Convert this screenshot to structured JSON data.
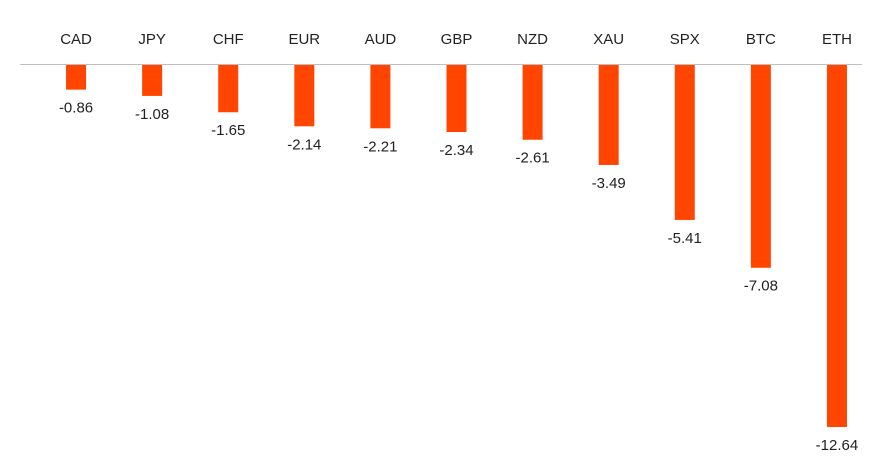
{
  "chart_data": {
    "type": "bar",
    "categories": [
      "CAD",
      "JPY",
      "CHF",
      "EUR",
      "AUD",
      "GBP",
      "NZD",
      "XAU",
      "SPX",
      "BTC",
      "ETH"
    ],
    "values": [
      -0.86,
      -1.08,
      -1.65,
      -2.14,
      -2.21,
      -2.34,
      -2.61,
      -3.49,
      -5.41,
      -7.08,
      -12.64
    ],
    "color": "#ff4500"
  }
}
